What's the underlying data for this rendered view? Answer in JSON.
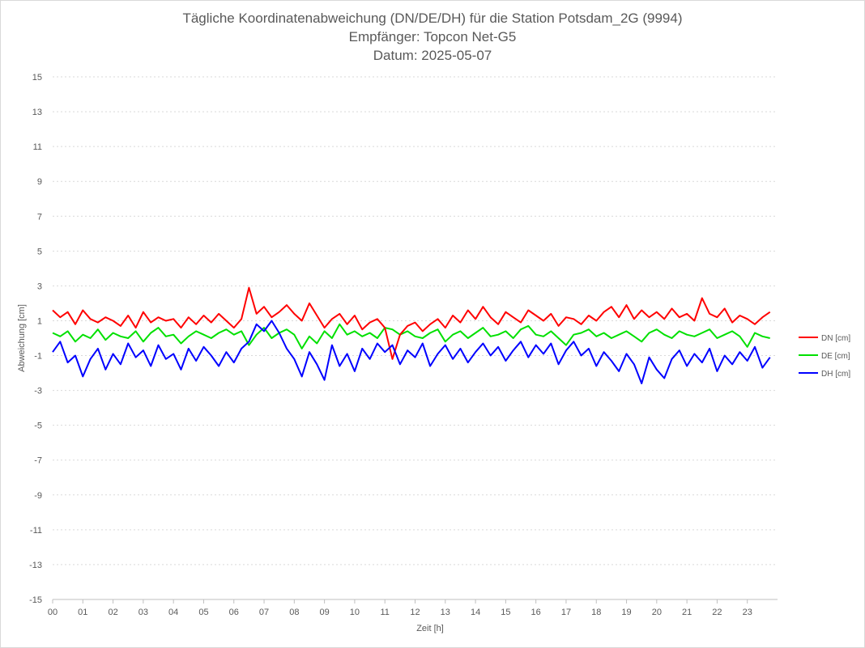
{
  "chart_data": {
    "type": "line",
    "title": "Tägliche Koordinatenabweichung (DN/DE/DH) für die Station Potsdam_2G (9994)",
    "subtitle": [
      "Empfänger: Topcon Net-G5",
      "Datum: 2025-05-07"
    ],
    "xlabel": "Zeit [h]",
    "ylabel": "Abweichung [cm]",
    "xlim": [
      0,
      24
    ],
    "ylim": [
      -15,
      15
    ],
    "x_ticks": [
      "00",
      "01",
      "02",
      "03",
      "04",
      "05",
      "06",
      "07",
      "08",
      "09",
      "10",
      "11",
      "12",
      "13",
      "14",
      "15",
      "16",
      "17",
      "18",
      "19",
      "20",
      "21",
      "22",
      "23"
    ],
    "y_ticks": [
      15,
      13,
      11,
      9,
      7,
      5,
      3,
      1,
      -1,
      -3,
      -5,
      -7,
      -9,
      -11,
      -13,
      -15
    ],
    "grid": "horizontal dotted",
    "legend": "right",
    "x": [
      0,
      0.25,
      0.5,
      0.75,
      1,
      1.25,
      1.5,
      1.75,
      2,
      2.25,
      2.5,
      2.75,
      3,
      3.25,
      3.5,
      3.75,
      4,
      4.25,
      4.5,
      4.75,
      5,
      5.25,
      5.5,
      5.75,
      6,
      6.25,
      6.5,
      6.75,
      7,
      7.25,
      7.5,
      7.75,
      8,
      8.25,
      8.5,
      8.75,
      9,
      9.25,
      9.5,
      9.75,
      10,
      10.25,
      10.5,
      10.75,
      11,
      11.25,
      11.5,
      11.75,
      12,
      12.25,
      12.5,
      12.75,
      13,
      13.25,
      13.5,
      13.75,
      14,
      14.25,
      14.5,
      14.75,
      15,
      15.25,
      15.5,
      15.75,
      16,
      16.25,
      16.5,
      16.75,
      17,
      17.25,
      17.5,
      17.75,
      18,
      18.25,
      18.5,
      18.75,
      19,
      19.25,
      19.5,
      19.75,
      20,
      20.25,
      20.5,
      20.75,
      21,
      21.25,
      21.5,
      21.75,
      22,
      22.25,
      22.5,
      22.75,
      23,
      23.25,
      23.5,
      23.75
    ],
    "series": [
      {
        "name": "DN [cm]",
        "color": "#ff0000",
        "values": [
          1.6,
          1.2,
          1.5,
          0.8,
          1.6,
          1.1,
          0.9,
          1.2,
          1.0,
          0.7,
          1.3,
          0.6,
          1.5,
          0.9,
          1.2,
          1.0,
          1.1,
          0.6,
          1.2,
          0.8,
          1.3,
          0.9,
          1.4,
          1.0,
          0.6,
          1.1,
          2.9,
          1.4,
          1.8,
          1.2,
          1.5,
          1.9,
          1.4,
          1.0,
          2.0,
          1.3,
          0.6,
          1.1,
          1.4,
          0.8,
          1.3,
          0.5,
          0.9,
          1.1,
          0.6,
          -1.2,
          0.2,
          0.7,
          0.9,
          0.4,
          0.8,
          1.1,
          0.6,
          1.3,
          0.9,
          1.6,
          1.1,
          1.8,
          1.2,
          0.8,
          1.5,
          1.2,
          0.9,
          1.6,
          1.3,
          1.0,
          1.4,
          0.7,
          1.2,
          1.1,
          0.8,
          1.3,
          1.0,
          1.5,
          1.8,
          1.2,
          1.9,
          1.1,
          1.6,
          1.2,
          1.5,
          1.1,
          1.7,
          1.2,
          1.4,
          1.0,
          2.3,
          1.4,
          1.2,
          1.7,
          0.9,
          1.3,
          1.1,
          0.8,
          1.2,
          1.5
        ]
      },
      {
        "name": "DE [cm]",
        "color": "#00e000",
        "values": [
          0.3,
          0.1,
          0.4,
          -0.2,
          0.2,
          0.0,
          0.5,
          -0.1,
          0.3,
          0.1,
          0.0,
          0.4,
          -0.2,
          0.3,
          0.6,
          0.1,
          0.2,
          -0.3,
          0.1,
          0.4,
          0.2,
          0.0,
          0.3,
          0.5,
          0.2,
          0.4,
          -0.4,
          0.2,
          0.6,
          0.0,
          0.3,
          0.5,
          0.2,
          -0.6,
          0.1,
          -0.3,
          0.4,
          0.0,
          0.8,
          0.2,
          0.4,
          0.1,
          0.3,
          0.0,
          0.6,
          0.5,
          0.2,
          0.4,
          0.1,
          0.0,
          0.3,
          0.5,
          -0.2,
          0.2,
          0.4,
          0.0,
          0.3,
          0.6,
          0.1,
          0.2,
          0.4,
          0.0,
          0.5,
          0.7,
          0.2,
          0.1,
          0.4,
          0.0,
          -0.4,
          0.2,
          0.3,
          0.5,
          0.1,
          0.3,
          0.0,
          0.2,
          0.4,
          0.1,
          -0.2,
          0.3,
          0.5,
          0.2,
          0.0,
          0.4,
          0.2,
          0.1,
          0.3,
          0.5,
          0.0,
          0.2,
          0.4,
          0.1,
          -0.5,
          0.3,
          0.1,
          0.0
        ]
      },
      {
        "name": "DH [cm]",
        "color": "#0000ff",
        "values": [
          -0.8,
          -0.2,
          -1.4,
          -1.0,
          -2.2,
          -1.2,
          -0.6,
          -1.8,
          -0.9,
          -1.5,
          -0.3,
          -1.1,
          -0.7,
          -1.6,
          -0.4,
          -1.2,
          -0.9,
          -1.8,
          -0.6,
          -1.3,
          -0.5,
          -1.0,
          -1.6,
          -0.8,
          -1.4,
          -0.6,
          -0.2,
          0.8,
          0.4,
          1.0,
          0.3,
          -0.6,
          -1.2,
          -2.2,
          -0.8,
          -1.5,
          -2.4,
          -0.4,
          -1.6,
          -0.9,
          -1.9,
          -0.6,
          -1.2,
          -0.3,
          -0.8,
          -0.4,
          -1.5,
          -0.7,
          -1.1,
          -0.3,
          -1.6,
          -0.9,
          -0.4,
          -1.2,
          -0.6,
          -1.4,
          -0.8,
          -0.3,
          -1.0,
          -0.5,
          -1.3,
          -0.7,
          -0.2,
          -1.1,
          -0.4,
          -0.9,
          -0.3,
          -1.5,
          -0.7,
          -0.2,
          -1.0,
          -0.6,
          -1.6,
          -0.8,
          -1.3,
          -1.9,
          -0.9,
          -1.5,
          -2.6,
          -1.1,
          -1.8,
          -2.3,
          -1.2,
          -0.7,
          -1.6,
          -0.9,
          -1.4,
          -0.6,
          -1.9,
          -1.0,
          -1.5,
          -0.8,
          -1.3,
          -0.5,
          -1.7,
          -1.1
        ]
      }
    ]
  }
}
